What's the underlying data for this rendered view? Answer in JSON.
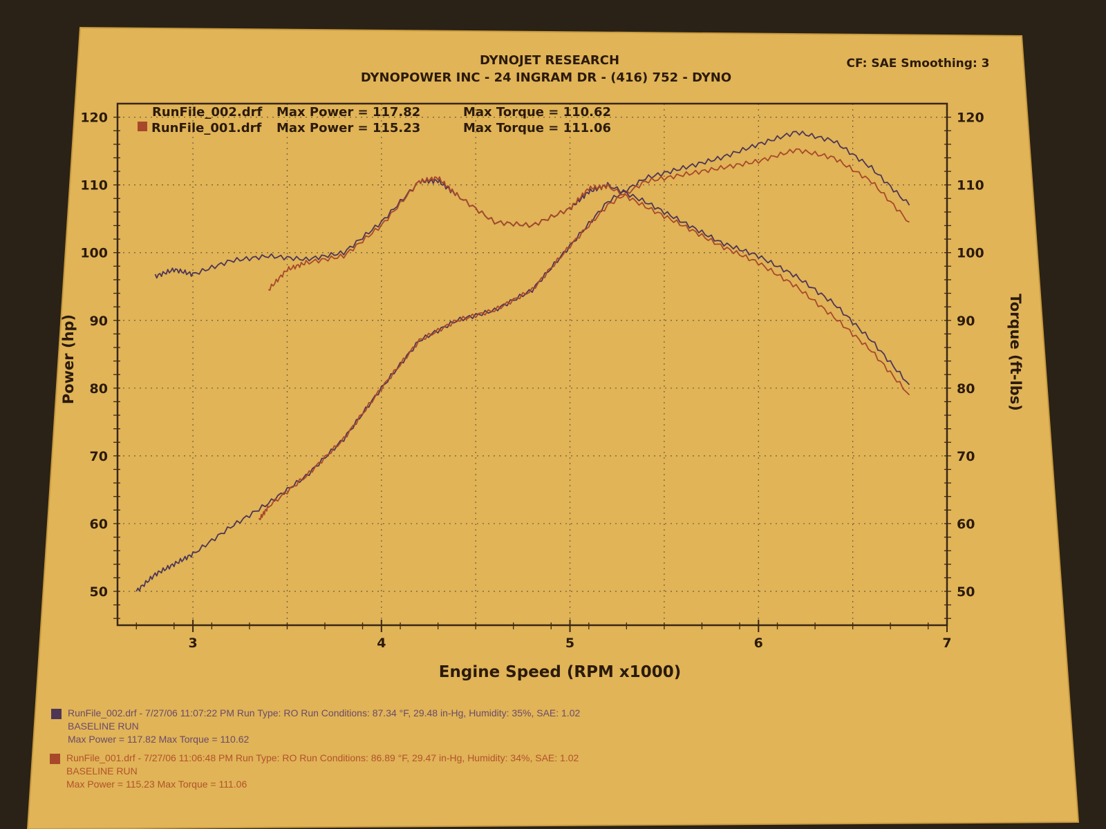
{
  "header": {
    "title": "DYNOJET RESEARCH",
    "subtitle": "DYNOPOWER INC  - 24 INGRAM DR - (416) 752 - DYNO",
    "settings": "CF: SAE  Smoothing: 3"
  },
  "legend": [
    {
      "file": "RunFile_002.drf",
      "power_label": "Max Power = 117.82",
      "torque_label": "Max Torque = 110.62"
    },
    {
      "file": "RunFile_001.drf",
      "power_label": "Max Power = 115.23",
      "torque_label": "Max Torque = 111.06"
    }
  ],
  "footer": [
    {
      "line1": "RunFile_002.drf - 7/27/06 11:07:22 PM  Run Type: RO  Run Conditions: 87.34 °F, 29.48 in-Hg,  Humidity:  35%, SAE: 1.02",
      "line2": "BASELINE RUN",
      "line3": "Max Power = 117.82  Max Torque = 110.62",
      "color": "#6b4a6a"
    },
    {
      "line1": "RunFile_001.drf - 7/27/06 11:06:48 PM  Run Type: RO  Run Conditions: 86.89 °F, 29.47 in-Hg,  Humidity:  34%, SAE: 1.02",
      "line2": "BASELINE RUN",
      "line3": "Max Power = 115.23  Max Torque = 111.06",
      "color": "#b3522c"
    }
  ],
  "colors": {
    "paper": "#e0b457",
    "paper_edge": "#c99a3e",
    "background": "#2a2216",
    "run_002": "#4e3556",
    "run_001": "#a8482a",
    "text": "#2b1a0c"
  },
  "chart_data": {
    "type": "line",
    "xlabel": "Engine Speed (RPM x1000)",
    "ylabel": "Power (hp)",
    "y2label": "Torque (ft-lbs)",
    "xlim": [
      2.6,
      7.0
    ],
    "ylim": [
      45,
      122
    ],
    "y2lim": [
      45,
      122
    ],
    "x_ticks": [
      "3",
      "4",
      "5",
      "6",
      "7"
    ],
    "y_ticks": [
      "50",
      "60",
      "70",
      "80",
      "90",
      "100",
      "110",
      "120"
    ],
    "y2_ticks": [
      "50",
      "60",
      "70",
      "80",
      "90",
      "100",
      "110",
      "120"
    ],
    "grid": true,
    "legend_position": "top-left",
    "series": [
      {
        "name": "RunFile_002.drf",
        "quantity": "power",
        "axis": "left",
        "x": [
          2.7,
          2.8,
          2.9,
          3.0,
          3.2,
          3.4,
          3.6,
          3.8,
          4.0,
          4.2,
          4.4,
          4.6,
          4.8,
          5.0,
          5.2,
          5.4,
          5.6,
          5.8,
          6.0,
          6.2,
          6.4,
          6.6,
          6.8
        ],
        "y": [
          50,
          52.5,
          54,
          55.5,
          59.5,
          63,
          67,
          72.5,
          80,
          87,
          90,
          91.5,
          94.5,
          101,
          107.5,
          111,
          112.5,
          114,
          116,
          117.8,
          116.5,
          112.5,
          107
        ]
      },
      {
        "name": "RunFile_001.drf",
        "quantity": "power",
        "axis": "left",
        "x": [
          3.35,
          3.4,
          3.6,
          3.8,
          4.0,
          4.2,
          4.4,
          4.6,
          4.8,
          5.0,
          5.2,
          5.4,
          5.6,
          5.8,
          6.0,
          6.2,
          6.4,
          6.6,
          6.8
        ],
        "y": [
          60.5,
          62.5,
          67,
          72.5,
          80,
          87,
          90,
          91.5,
          94.5,
          101,
          107,
          110.5,
          111.5,
          112.5,
          113.5,
          115.2,
          114,
          110.5,
          104.5
        ]
      },
      {
        "name": "RunFile_002.drf",
        "quantity": "torque",
        "axis": "right",
        "x": [
          2.8,
          2.9,
          3.0,
          3.2,
          3.4,
          3.6,
          3.8,
          4.0,
          4.2,
          4.3,
          4.4,
          4.6,
          4.8,
          5.0,
          5.1,
          5.2,
          5.4,
          5.6,
          5.8,
          6.0,
          6.2,
          6.4,
          6.6,
          6.8
        ],
        "y": [
          96.5,
          97.5,
          96.8,
          98.8,
          99.5,
          99,
          100,
          104.5,
          110.5,
          110.6,
          108.5,
          104.5,
          104,
          106.5,
          109,
          110,
          107.5,
          104.5,
          101.5,
          99.5,
          96.5,
          92.5,
          87,
          80.5
        ]
      },
      {
        "name": "RunFile_001.drf",
        "quantity": "torque",
        "axis": "right",
        "x": [
          3.4,
          3.5,
          3.6,
          3.8,
          4.0,
          4.2,
          4.3,
          4.4,
          4.6,
          4.8,
          5.0,
          5.1,
          5.2,
          5.4,
          5.6,
          5.8,
          6.0,
          6.2,
          6.4,
          6.6,
          6.8
        ],
        "y": [
          94.5,
          97.5,
          98.5,
          99.5,
          104,
          110.5,
          111.06,
          108.5,
          104.5,
          104,
          106.5,
          109.5,
          109.8,
          106.8,
          104,
          101,
          98.5,
          95,
          90.5,
          85.5,
          79
        ]
      }
    ]
  }
}
